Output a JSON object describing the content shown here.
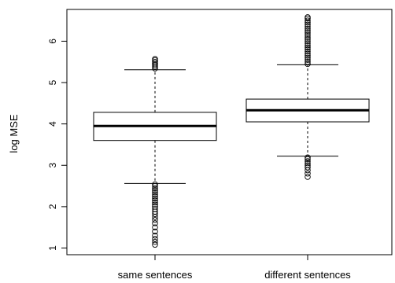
{
  "chart_data": {
    "type": "box",
    "title": "",
    "xlabel": "",
    "ylabel": "log MSE",
    "ylim": [
      0.85,
      6.7
    ],
    "yticks": [
      1,
      2,
      3,
      4,
      5,
      6
    ],
    "grid": false,
    "legend": "none",
    "categories": [
      "same sentences",
      "different sentences"
    ],
    "boxes": [
      {
        "category": "same sentences",
        "whisker_low": 2.56,
        "q1": 3.6,
        "median": 3.95,
        "q3": 4.28,
        "whisker_high": 5.31,
        "outliers": [
          1.08,
          1.15,
          1.22,
          1.3,
          1.4,
          1.5,
          1.6,
          1.68,
          1.75,
          1.82,
          1.88,
          1.94,
          2.0,
          2.05,
          2.1,
          2.15,
          2.2,
          2.25,
          2.3,
          2.35,
          2.4,
          2.45,
          2.5,
          2.54,
          5.34,
          5.38,
          5.42,
          5.46,
          5.5,
          5.54,
          5.57
        ]
      },
      {
        "category": "different sentences",
        "whisker_low": 3.22,
        "q1": 4.05,
        "median": 4.33,
        "q3": 4.6,
        "whisker_high": 5.43,
        "outliers": [
          2.72,
          2.8,
          2.88,
          2.95,
          3.0,
          3.05,
          3.1,
          3.15,
          3.19,
          5.45,
          5.5,
          5.55,
          5.6,
          5.65,
          5.7,
          5.75,
          5.8,
          5.85,
          5.9,
          5.95,
          6.0,
          6.05,
          6.1,
          6.15,
          6.2,
          6.25,
          6.3,
          6.35,
          6.4,
          6.45,
          6.5,
          6.55,
          6.58
        ]
      }
    ]
  }
}
